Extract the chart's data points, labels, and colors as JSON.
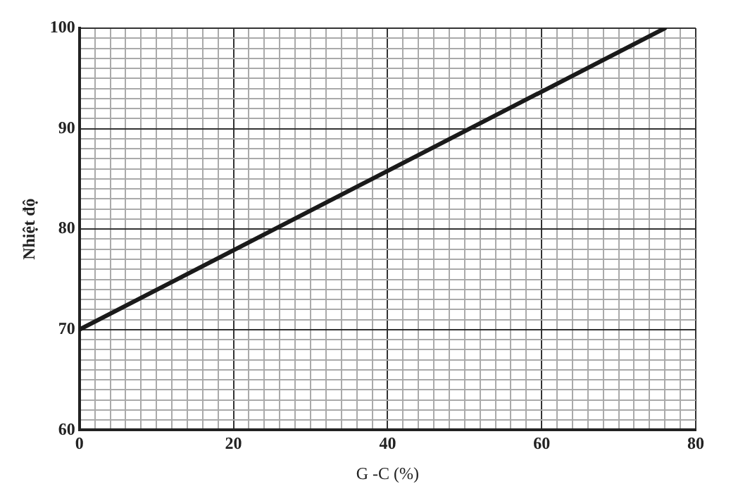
{
  "chart_data": {
    "type": "line",
    "xlabel": "G -C (%)",
    "ylabel": "Nhiệt độ",
    "x": [
      0,
      76
    ],
    "series": [
      {
        "color": "#1a1a1a",
        "values": [
          70,
          100
        ]
      }
    ],
    "xlim": [
      0,
      80
    ],
    "xticks": [
      0,
      {
        "value": 2,
        "label": null
      },
      {
        "value": 4,
        "label": null
      },
      {
        "value": 6,
        "label": null
      },
      {
        "value": 8,
        "label": null
      },
      {
        "value": 10,
        "label": null
      },
      {
        "value": 12,
        "label": null
      },
      {
        "value": 14,
        "label": null
      },
      {
        "value": 16,
        "label": null
      },
      {
        "value": 18,
        "label": null
      },
      20,
      {
        "value": 22,
        "label": null
      },
      {
        "value": 24,
        "label": null
      },
      {
        "value": 26,
        "label": null
      },
      {
        "value": 28,
        "label": null
      },
      {
        "value": 30,
        "label": null
      },
      {
        "value": 32,
        "label": null
      },
      {
        "value": 34,
        "label": null
      },
      {
        "value": 36,
        "label": null
      },
      {
        "value": 38,
        "label": null
      },
      40,
      {
        "value": 42,
        "label": null
      },
      {
        "value": 44,
        "label": null
      },
      {
        "value": 46,
        "label": null
      },
      {
        "value": 48,
        "label": null
      },
      {
        "value": 50,
        "label": null
      },
      {
        "value": 52,
        "label": null
      },
      {
        "value": 54,
        "label": null
      },
      {
        "value": 56,
        "label": null
      },
      {
        "value": 58,
        "label": null
      },
      60,
      {
        "value": 62,
        "label": null
      },
      {
        "value": 64,
        "label": null
      },
      {
        "value": 66,
        "label": null
      },
      {
        "value": 68,
        "label": null
      },
      {
        "value": 70,
        "label": null
      },
      {
        "value": 72,
        "label": null
      },
      {
        "value": 74,
        "label": null
      },
      {
        "value": 76,
        "label": null
      },
      {
        "value": 78,
        "label": null
      },
      80
    ],
    "ylim": [
      60,
      100
    ],
    "yticks": [
      60,
      {
        "value": 61,
        "label": null
      },
      {
        "value": 62,
        "label": null
      },
      {
        "value": 63,
        "label": null
      },
      {
        "value": 64,
        "label": null
      },
      {
        "value": 65,
        "label": null
      },
      {
        "value": 66,
        "label": null
      },
      {
        "value": 67,
        "label": null
      },
      {
        "value": 68,
        "label": null
      },
      {
        "value": 69,
        "label": null
      },
      70,
      {
        "value": 71,
        "label": null
      },
      {
        "value": 72,
        "label": null
      },
      {
        "value": 73,
        "label": null
      },
      {
        "value": 74,
        "label": null
      },
      {
        "value": 75,
        "label": null
      },
      {
        "value": 76,
        "label": null
      },
      {
        "value": 77,
        "label": null
      },
      {
        "value": 78,
        "label": null
      },
      {
        "value": 79,
        "label": null
      },
      80,
      {
        "value": 81,
        "label": null
      },
      {
        "value": 82,
        "label": null
      },
      {
        "value": 83,
        "label": null
      },
      {
        "value": 84,
        "label": null
      },
      {
        "value": 85,
        "label": null
      },
      {
        "value": 86,
        "label": null
      },
      {
        "value": 87,
        "label": null
      },
      {
        "value": 88,
        "label": null
      },
      {
        "value": 89,
        "label": null
      },
      90,
      {
        "value": 91,
        "label": null
      },
      {
        "value": 92,
        "label": null
      },
      {
        "value": 93,
        "label": null
      },
      {
        "value": 94,
        "label": null
      },
      {
        "value": 95,
        "label": null
      },
      {
        "value": 96,
        "label": null
      },
      {
        "value": 97,
        "label": null
      },
      {
        "value": 98,
        "label": null
      },
      {
        "value": 99,
        "label": null
      },
      100
    ],
    "grid": true,
    "marker": "none",
    "line_style": "solid"
  }
}
